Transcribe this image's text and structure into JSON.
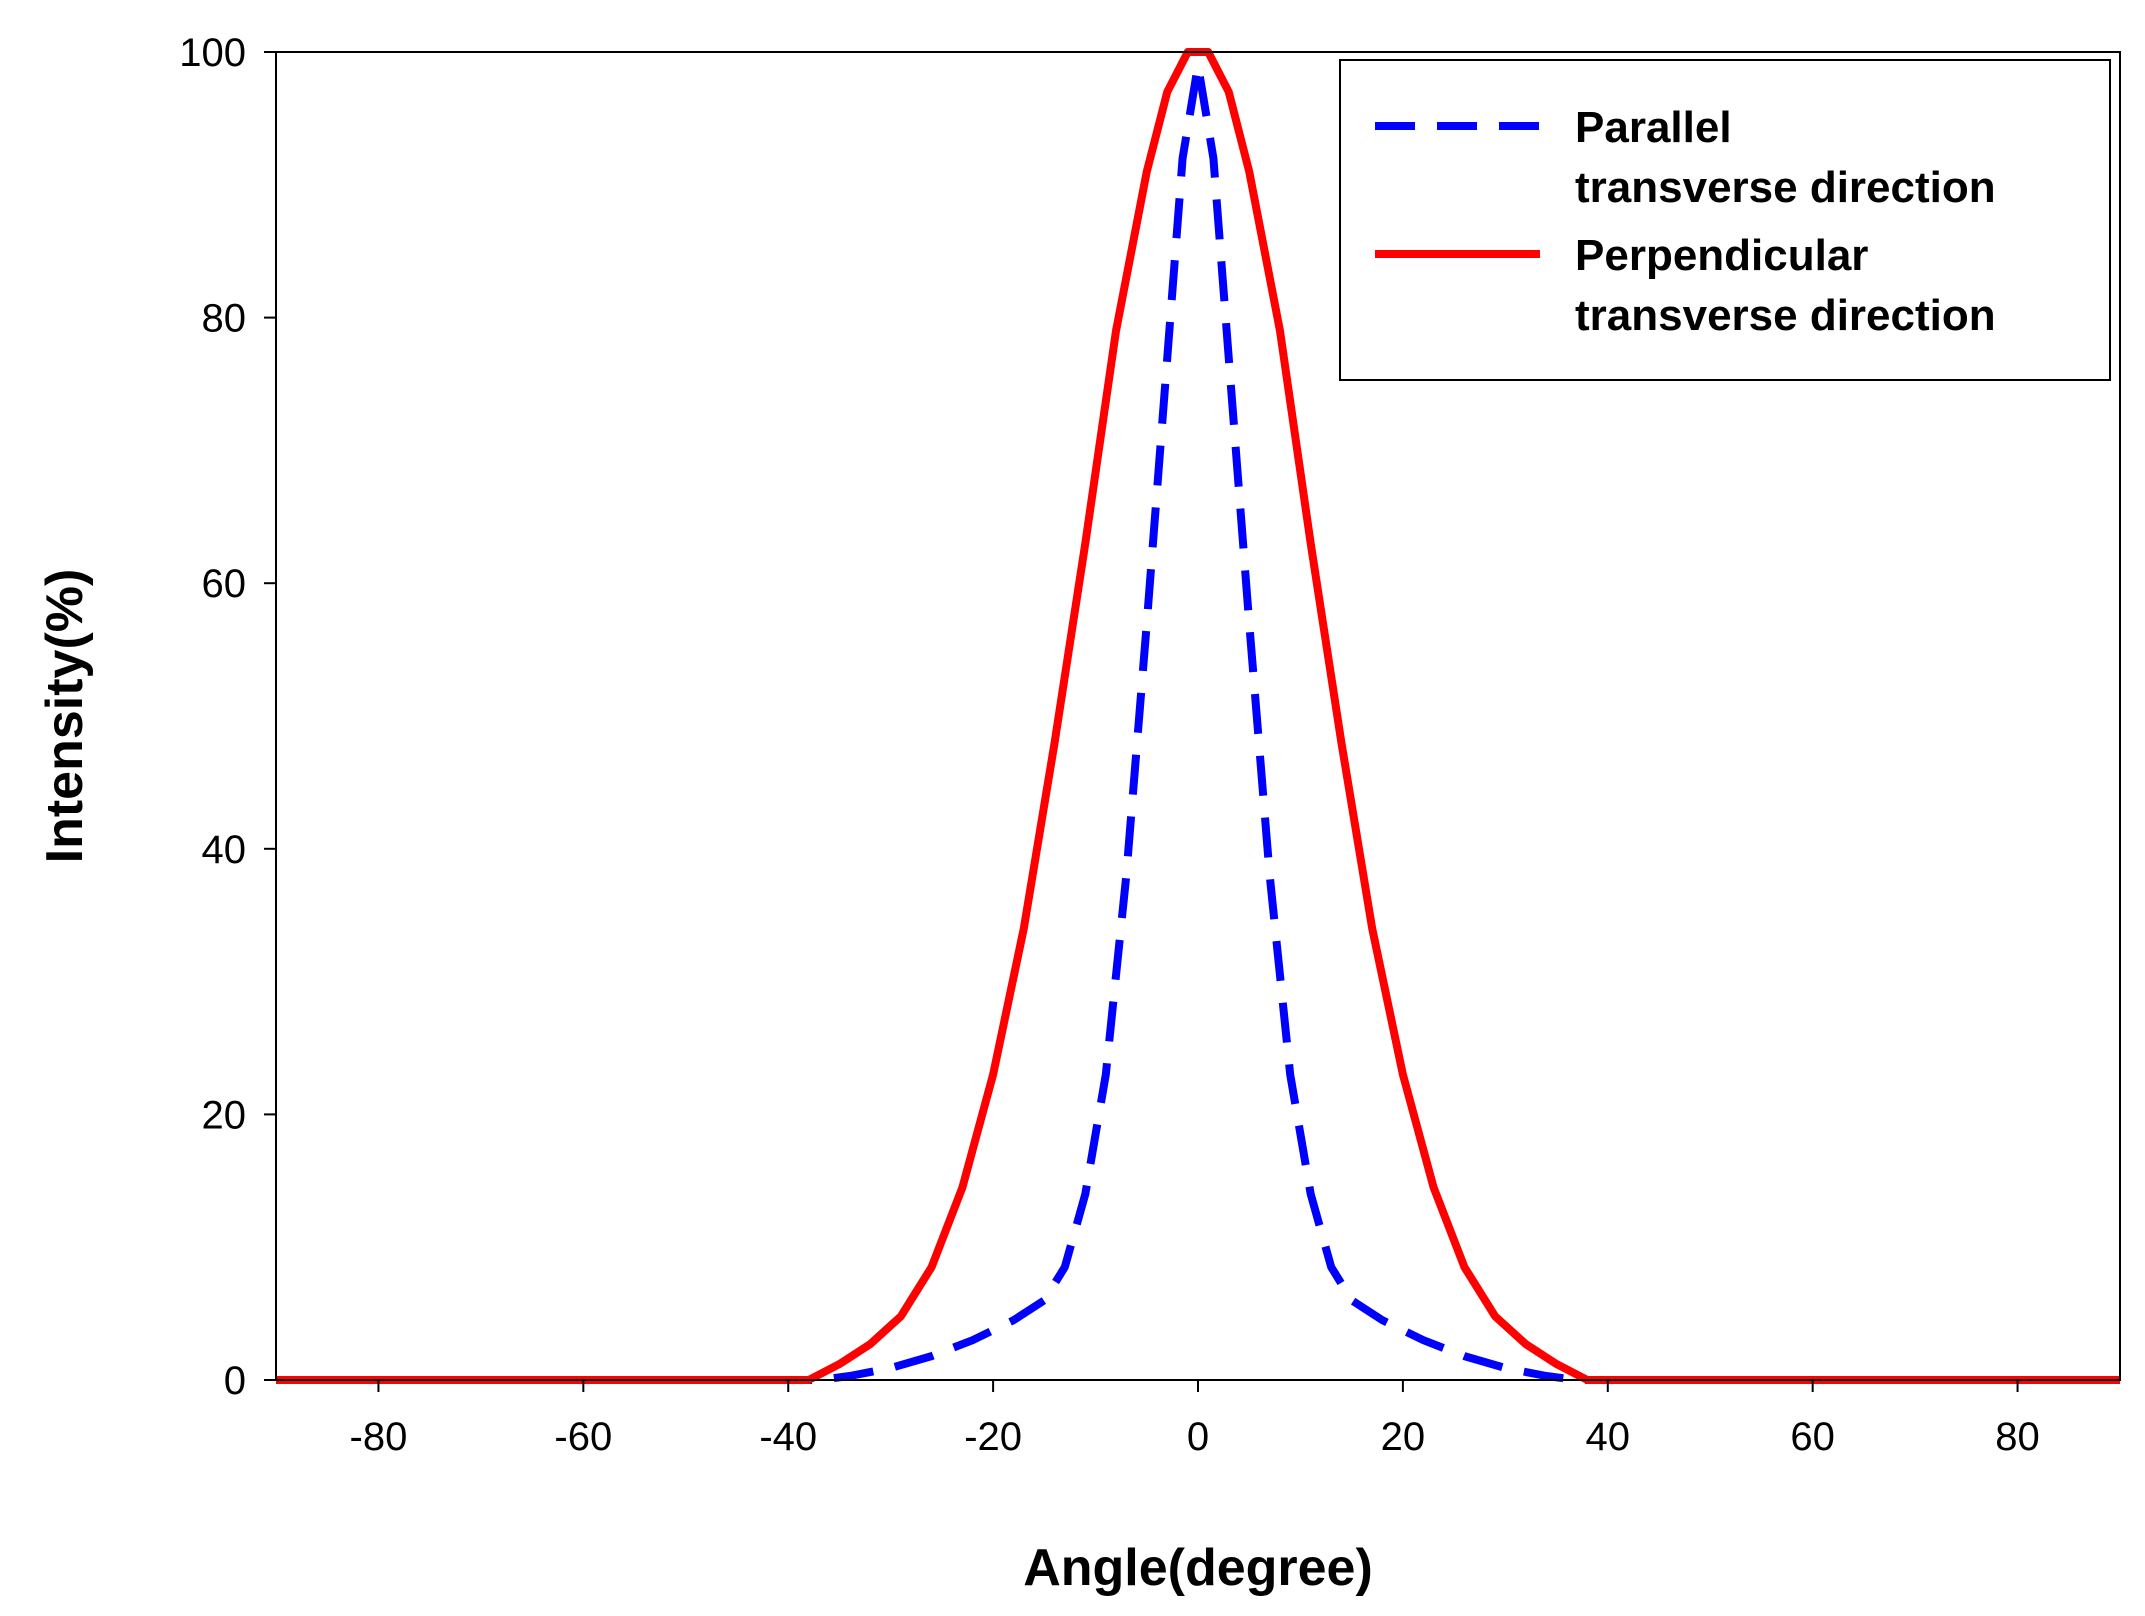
{
  "chart_data": {
    "type": "line",
    "title": "",
    "xlabel": "Angle(degree)",
    "ylabel": "Intensity(%)",
    "xlim": [
      -90,
      90
    ],
    "ylim": [
      0,
      100
    ],
    "xticks": [
      -80,
      -60,
      -40,
      -20,
      0,
      20,
      40,
      60,
      80
    ],
    "xtick_labels": [
      "-80",
      "-60",
      "-40",
      "-20",
      "0",
      "20",
      "40",
      "60",
      "80"
    ],
    "yticks": [
      0,
      20,
      40,
      60,
      80,
      100
    ],
    "ytick_labels": [
      "0",
      "20",
      "40",
      "60",
      "80",
      "100"
    ],
    "grid": false,
    "legend_position": "top-right",
    "series": [
      {
        "name": "Parallel transverse direction",
        "legend_lines": [
          "Parallel",
          "transverse direction"
        ],
        "color": "#0000ff",
        "style": "dashed",
        "x": [
          -90,
          -40,
          -37,
          -34,
          -30,
          -26,
          -22,
          -18,
          -15,
          -13,
          -11,
          -9,
          -7,
          -5,
          -3,
          -1.5,
          0,
          1.5,
          3,
          5,
          7,
          9,
          11,
          13,
          15,
          18,
          22,
          26,
          30,
          34,
          37,
          40,
          90
        ],
        "y": [
          0,
          0,
          0,
          0.3,
          0.9,
          1.8,
          3,
          4.5,
          6,
          8.5,
          14,
          23,
          38,
          57,
          77,
          92,
          99,
          92,
          77,
          57,
          38,
          23,
          14,
          8.5,
          6,
          4.5,
          3,
          1.8,
          0.9,
          0.3,
          0,
          0,
          0
        ]
      },
      {
        "name": "Perpendicular transverse direction",
        "legend_lines": [
          "Perpendicular",
          "transverse direction"
        ],
        "color": "#ff0000",
        "style": "solid",
        "x": [
          -90,
          -38,
          -35,
          -32,
          -29,
          -26,
          -23,
          -20,
          -17,
          -14,
          -11,
          -8,
          -5,
          -3,
          -1,
          0,
          1,
          3,
          5,
          8,
          11,
          14,
          17,
          20,
          23,
          26,
          29,
          32,
          35,
          38,
          90
        ],
        "y": [
          0,
          0,
          1.2,
          2.7,
          4.8,
          8.5,
          14.5,
          23,
          34,
          48,
          63,
          79,
          91,
          97,
          100,
          100,
          100,
          97,
          91,
          79,
          63,
          48,
          34,
          23,
          14.5,
          8.5,
          4.8,
          2.7,
          1.2,
          0,
          0
        ]
      }
    ]
  }
}
